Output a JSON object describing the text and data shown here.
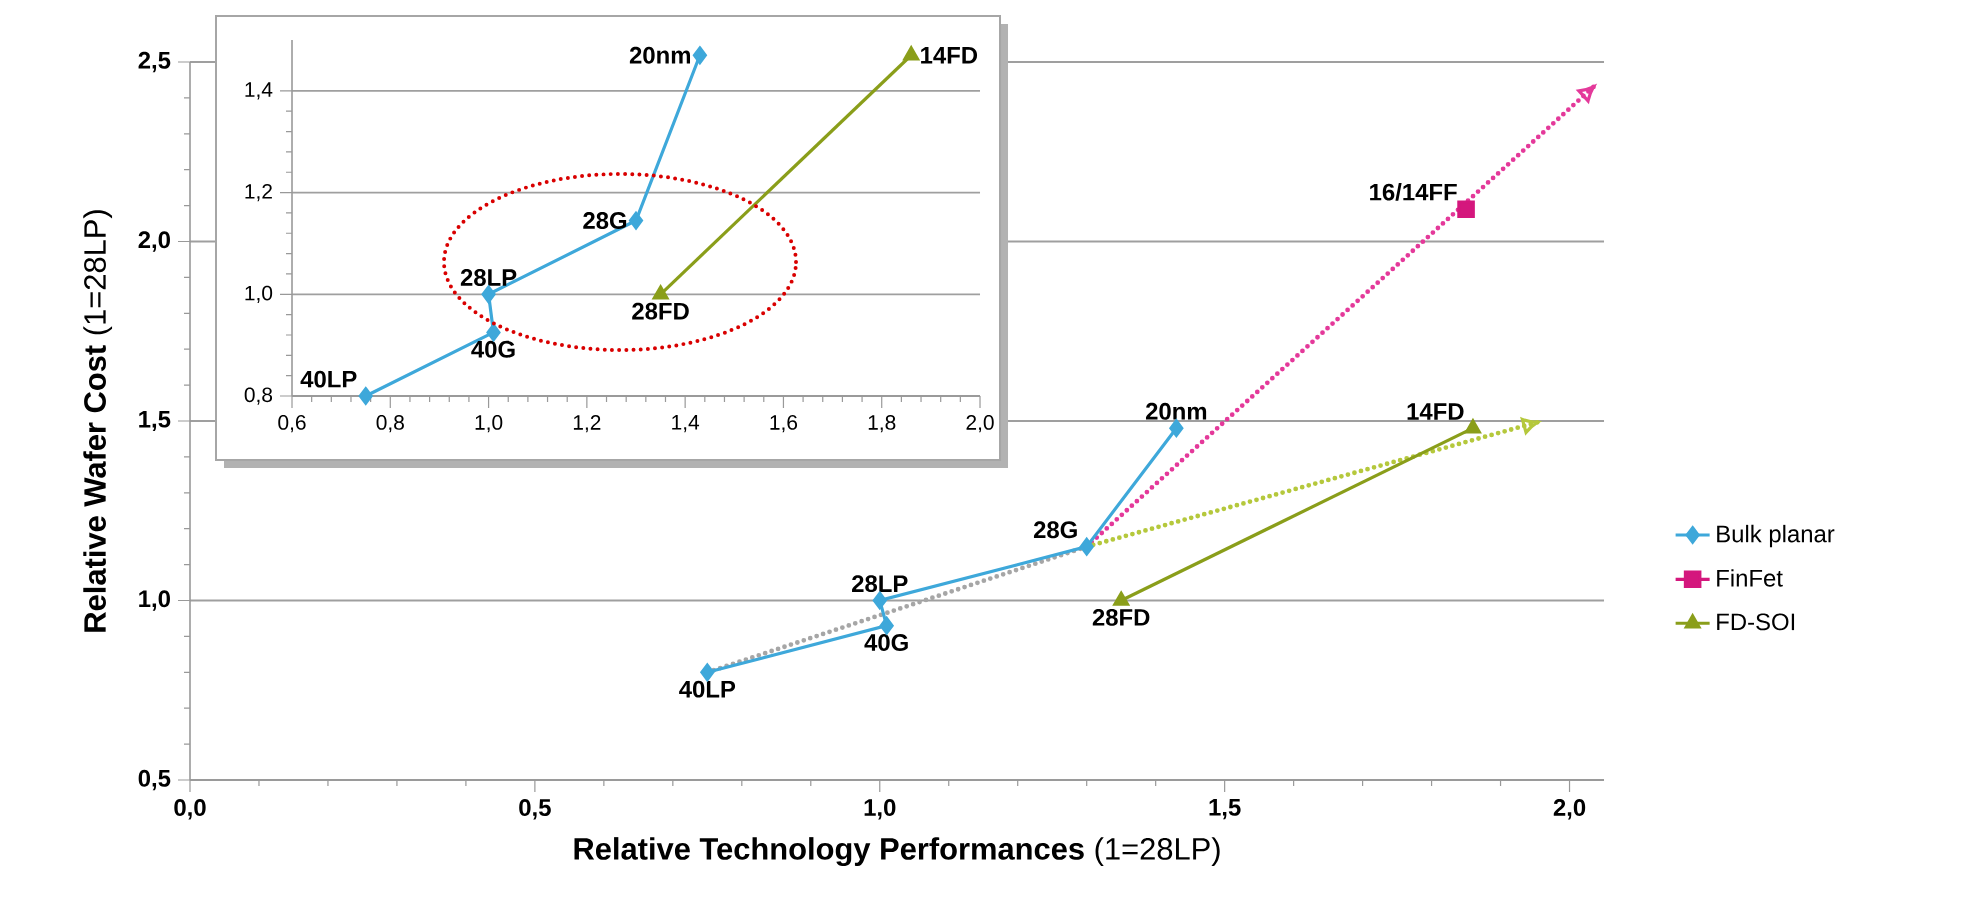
{
  "chart_data": [
    {
      "type": "line",
      "xlabel": "**Relative Technology Performances** (1=28LP)",
      "ylabel": "**Relative Wafer Cost** (1=28LP)",
      "xlim": [
        0,
        2.05
      ],
      "xticks": [
        {
          "value": 0,
          "label": "0,0"
        },
        {
          "value": 0.5,
          "label": "0,5"
        },
        {
          "value": 1.0,
          "label": "1,0"
        },
        {
          "value": 1.5,
          "label": "1,5"
        },
        {
          "value": 2.0,
          "label": "2,0"
        }
      ],
      "ylim": [
        0.5,
        2.5
      ],
      "yticks": [
        {
          "value": 0.5,
          "label": "0,5"
        },
        {
          "value": 1.0,
          "label": "1,0"
        },
        {
          "value": 1.5,
          "label": "1,5"
        },
        {
          "value": 2.0,
          "label": "2,0"
        },
        {
          "value": 2.5,
          "label": "2,5"
        }
      ],
      "grid": "y",
      "legend": "right",
      "series": [
        {
          "color": "#a6a6a6",
          "x": [
            0.75,
            1.3
          ],
          "values": [
            0.8,
            1.15
          ],
          "line_style": "dotted",
          "marker": "none"
        },
        {
          "color": "#e4399a",
          "x": [
            1.3,
            2.04
          ],
          "values": [
            1.15,
            2.44
          ],
          "line_style": "dotted",
          "marker": "none"
        },
        {
          "color": "#b5c83c",
          "x": [
            1.3,
            1.96
          ],
          "values": [
            1.15,
            1.5
          ],
          "line_style": "dotted",
          "marker": "none"
        },
        {
          "name": "Bulk planar",
          "color": "#3ea8da",
          "x": [
            0.75,
            1.01,
            1.0,
            1.3,
            1.43
          ],
          "values": [
            0.8,
            0.93,
            1.0,
            1.15,
            1.48
          ],
          "marker": "diamond",
          "line_style": "solid"
        },
        {
          "name": "FinFet",
          "color": "#d4177d",
          "x": [
            1.85
          ],
          "values": [
            2.09
          ],
          "marker": "square",
          "line_style": "solid"
        },
        {
          "name": "FD-SOI",
          "color": "#8a9e1a",
          "x": [
            1.35,
            1.86
          ],
          "values": [
            1.0,
            1.48
          ],
          "marker": "triangle",
          "line_style": "solid"
        }
      ],
      "annotations": [
        {
          "text": "40LP",
          "x": 0.75,
          "y": 0.8
        },
        {
          "text": "40G",
          "x": 1.01,
          "y": 0.93
        },
        {
          "text": "28LP",
          "x": 1.0,
          "y": 1.0
        },
        {
          "text": "28G",
          "x": 1.3,
          "y": 1.15
        },
        {
          "text": "20nm",
          "x": 1.43,
          "y": 1.48
        },
        {
          "text": "16/14FF",
          "x": 1.85,
          "y": 2.09
        },
        {
          "text": "14FD",
          "x": 1.86,
          "y": 1.48
        },
        {
          "text": "28FD",
          "x": 1.35,
          "y": 1.0
        }
      ]
    },
    {
      "type": "line",
      "xlim": [
        0.6,
        2.0
      ],
      "xticks": [
        {
          "value": 0.6,
          "label": "0,6"
        },
        {
          "value": 0.8,
          "label": "0,8"
        },
        {
          "value": 1.0,
          "label": "1,0"
        },
        {
          "value": 1.2,
          "label": "1,2"
        },
        {
          "value": 1.4,
          "label": "1,4"
        },
        {
          "value": 1.6,
          "label": "1,6"
        },
        {
          "value": 1.8,
          "label": "1,8"
        },
        {
          "value": 2.0,
          "label": "2,0"
        }
      ],
      "ylim": [
        0.8,
        1.5
      ],
      "yticks": [
        {
          "value": 0.8,
          "label": "0,8"
        },
        {
          "value": 1.0,
          "label": "1,0"
        },
        {
          "value": 1.2,
          "label": "1,2"
        },
        {
          "value": 1.4,
          "label": "1,4"
        }
      ],
      "grid": "y",
      "series": [
        {
          "color": "#3ea8da",
          "x": [
            0.75,
            1.01,
            1.0,
            1.3,
            1.43
          ],
          "values": [
            0.8,
            0.925,
            1.0,
            1.145,
            1.47
          ],
          "marker": "diamond",
          "line_style": "solid"
        },
        {
          "color": "#8a9e1a",
          "x": [
            1.35,
            1.86
          ],
          "values": [
            1.0,
            1.47
          ],
          "marker": "triangle",
          "line_style": "solid"
        }
      ],
      "annotations": [
        {
          "text": "40LP",
          "x": 0.75,
          "y": 0.8
        },
        {
          "text": "40G",
          "x": 1.01,
          "y": 0.925
        },
        {
          "text": "28LP",
          "x": 1.0,
          "y": 1.0
        },
        {
          "text": "28G",
          "x": 1.3,
          "y": 1.145
        },
        {
          "text": "20nm",
          "x": 1.43,
          "y": 1.47
        },
        {
          "text": "28FD",
          "x": 1.35,
          "y": 1.0
        },
        {
          "text": "14FD",
          "x": 1.86,
          "y": 1.47
        }
      ]
    }
  ]
}
